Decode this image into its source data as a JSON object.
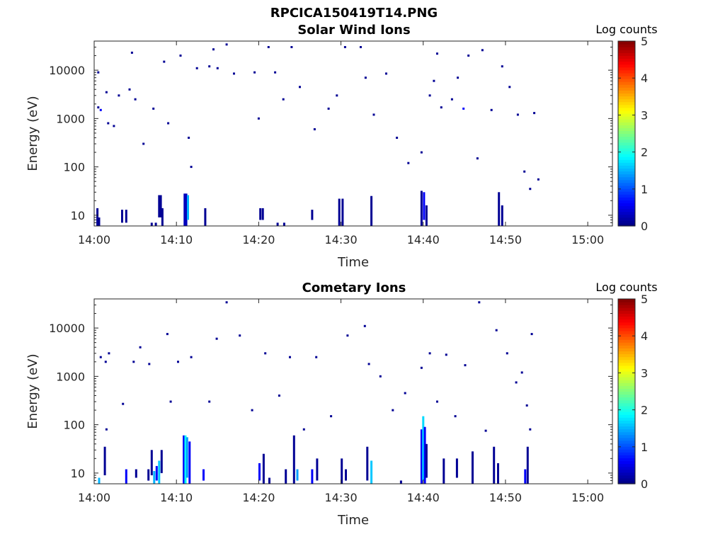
{
  "figure": {
    "title": "RPCICA150419T14.PNG"
  },
  "chart_data": [
    {
      "type": "heatmap",
      "title": "Solar Wind Ions",
      "xlabel": "Time",
      "ylabel": "Energy (eV)",
      "x_ticks": [
        "14:00",
        "14:10",
        "14:20",
        "14:30",
        "14:40",
        "14:50",
        "15:00"
      ],
      "xlim_minutes": [
        0,
        63
      ],
      "y_scale": "log",
      "y_ticks": [
        "10",
        "100",
        "1000",
        "10000"
      ],
      "ylim": [
        6,
        40000
      ],
      "colorbar": {
        "label": "Log counts",
        "range": [
          0,
          5
        ],
        "ticks": [
          "0",
          "1",
          "2",
          "3",
          "4",
          "5"
        ],
        "colormap": "jet"
      },
      "grid": false,
      "columns": [
        {
          "t": 0.4,
          "e_min": 6,
          "e_max": 14,
          "v": 0.1
        },
        {
          "t": 0.6,
          "e_min": 6,
          "e_max": 9,
          "v": 0.1
        },
        {
          "t": 3.4,
          "e_min": 7,
          "e_max": 13,
          "v": 0.1
        },
        {
          "t": 3.9,
          "e_min": 7,
          "e_max": 13,
          "v": 0.1
        },
        {
          "t": 7.0,
          "e_min": 6,
          "e_max": 7,
          "v": 0.1
        },
        {
          "t": 7.5,
          "e_min": 6,
          "e_max": 7,
          "v": 0.1
        },
        {
          "t": 7.9,
          "e_min": 9,
          "e_max": 26,
          "v": 0.1
        },
        {
          "t": 8.1,
          "e_min": 9,
          "e_max": 26,
          "v": 0.1
        },
        {
          "t": 8.3,
          "e_min": 6,
          "e_max": 14,
          "v": 0.1
        },
        {
          "t": 11.0,
          "e_min": 6,
          "e_max": 28,
          "v": 0.3
        },
        {
          "t": 11.2,
          "e_min": 6,
          "e_max": 28,
          "v": 0.3
        },
        {
          "t": 11.4,
          "e_min": 8,
          "e_max": 26,
          "v": 1.5
        },
        {
          "t": 13.5,
          "e_min": 6,
          "e_max": 14,
          "v": 0.1
        },
        {
          "t": 20.2,
          "e_min": 8,
          "e_max": 14,
          "v": 0.1
        },
        {
          "t": 20.5,
          "e_min": 8,
          "e_max": 14,
          "v": 0.1
        },
        {
          "t": 22.3,
          "e_min": 6,
          "e_max": 7,
          "v": 0.1
        },
        {
          "t": 23.1,
          "e_min": 6,
          "e_max": 7,
          "v": 0.1
        },
        {
          "t": 26.5,
          "e_min": 8,
          "e_max": 13,
          "v": 0.1
        },
        {
          "t": 29.8,
          "e_min": 6,
          "e_max": 22,
          "v": 0.1
        },
        {
          "t": 30.2,
          "e_min": 6,
          "e_max": 22,
          "v": 0.1
        },
        {
          "t": 33.7,
          "e_min": 6,
          "e_max": 25,
          "v": 0.1
        },
        {
          "t": 39.8,
          "e_min": 6,
          "e_max": 32,
          "v": 0.1
        },
        {
          "t": 40.1,
          "e_min": 8,
          "e_max": 30,
          "v": 0.6
        },
        {
          "t": 40.4,
          "e_min": 6,
          "e_max": 16,
          "v": 0.1
        },
        {
          "t": 49.2,
          "e_min": 6,
          "e_max": 30,
          "v": 0.1
        },
        {
          "t": 49.6,
          "e_min": 6,
          "e_max": 16,
          "v": 0.1
        }
      ],
      "points": [
        {
          "t": 0.5,
          "e": 1700,
          "v": 0.1
        },
        {
          "t": 0.8,
          "e": 1500,
          "v": 0.6
        },
        {
          "t": 0.5,
          "e": 9000,
          "v": 0.1
        },
        {
          "t": 1.5,
          "e": 3500,
          "v": 0.1
        },
        {
          "t": 1.7,
          "e": 800,
          "v": 0.1
        },
        {
          "t": 2.4,
          "e": 700,
          "v": 0.1
        },
        {
          "t": 3.0,
          "e": 3000,
          "v": 0.1
        },
        {
          "t": 4.3,
          "e": 4000,
          "v": 0.1
        },
        {
          "t": 4.6,
          "e": 23000,
          "v": 0.1
        },
        {
          "t": 5.0,
          "e": 2500,
          "v": 0.1
        },
        {
          "t": 6.0,
          "e": 300,
          "v": 0.1
        },
        {
          "t": 7.2,
          "e": 1600,
          "v": 0.1
        },
        {
          "t": 8.5,
          "e": 15000,
          "v": 0.1
        },
        {
          "t": 9.0,
          "e": 800,
          "v": 0.1
        },
        {
          "t": 10.5,
          "e": 20000,
          "v": 0.1
        },
        {
          "t": 11.5,
          "e": 400,
          "v": 0.1
        },
        {
          "t": 11.8,
          "e": 100,
          "v": 0.1
        },
        {
          "t": 12.5,
          "e": 11000,
          "v": 0.1
        },
        {
          "t": 14.0,
          "e": 12000,
          "v": 0.1
        },
        {
          "t": 14.5,
          "e": 27000,
          "v": 0.1
        },
        {
          "t": 15.0,
          "e": 11000,
          "v": 0.1
        },
        {
          "t": 16.1,
          "e": 34000,
          "v": 0.1
        },
        {
          "t": 17.0,
          "e": 8500,
          "v": 0.1
        },
        {
          "t": 19.5,
          "e": 9000,
          "v": 0.1
        },
        {
          "t": 20.0,
          "e": 1000,
          "v": 0.1
        },
        {
          "t": 21.2,
          "e": 30000,
          "v": 0.1
        },
        {
          "t": 22.0,
          "e": 9000,
          "v": 0.1
        },
        {
          "t": 23.0,
          "e": 2500,
          "v": 0.1
        },
        {
          "t": 24.0,
          "e": 30000,
          "v": 0.1
        },
        {
          "t": 25.0,
          "e": 4500,
          "v": 0.1
        },
        {
          "t": 26.8,
          "e": 600,
          "v": 0.1
        },
        {
          "t": 28.5,
          "e": 1600,
          "v": 0.1
        },
        {
          "t": 29.5,
          "e": 3000,
          "v": 0.1
        },
        {
          "t": 30.5,
          "e": 30000,
          "v": 0.1
        },
        {
          "t": 32.4,
          "e": 30000,
          "v": 0.1
        },
        {
          "t": 33.0,
          "e": 7000,
          "v": 0.1
        },
        {
          "t": 34.0,
          "e": 1200,
          "v": 0.1
        },
        {
          "t": 35.5,
          "e": 8500,
          "v": 0.1
        },
        {
          "t": 36.8,
          "e": 400,
          "v": 0.1
        },
        {
          "t": 38.2,
          "e": 120,
          "v": 0.1
        },
        {
          "t": 39.8,
          "e": 200,
          "v": 0.1
        },
        {
          "t": 40.8,
          "e": 3000,
          "v": 0.1
        },
        {
          "t": 41.3,
          "e": 6000,
          "v": 0.1
        },
        {
          "t": 41.7,
          "e": 22000,
          "v": 0.1
        },
        {
          "t": 42.2,
          "e": 1700,
          "v": 0.1
        },
        {
          "t": 43.5,
          "e": 2500,
          "v": 0.1
        },
        {
          "t": 44.2,
          "e": 7000,
          "v": 0.1
        },
        {
          "t": 44.9,
          "e": 1600,
          "v": 0.6
        },
        {
          "t": 45.5,
          "e": 20000,
          "v": 0.1
        },
        {
          "t": 46.6,
          "e": 150,
          "v": 0.1
        },
        {
          "t": 47.2,
          "e": 26000,
          "v": 0.1
        },
        {
          "t": 48.3,
          "e": 1500,
          "v": 0.1
        },
        {
          "t": 49.6,
          "e": 12000,
          "v": 0.1
        },
        {
          "t": 50.5,
          "e": 4500,
          "v": 0.1
        },
        {
          "t": 51.5,
          "e": 1200,
          "v": 0.1
        },
        {
          "t": 52.3,
          "e": 80,
          "v": 0.1
        },
        {
          "t": 53.0,
          "e": 35,
          "v": 0.1
        },
        {
          "t": 54.0,
          "e": 55,
          "v": 0.1
        },
        {
          "t": 53.5,
          "e": 1300,
          "v": 0.1
        }
      ]
    },
    {
      "type": "heatmap",
      "title": "Cometary Ions",
      "xlabel": "Time",
      "ylabel": "Energy (eV)",
      "x_ticks": [
        "14:00",
        "14:10",
        "14:20",
        "14:30",
        "14:40",
        "14:50",
        "15:00"
      ],
      "xlim_minutes": [
        0,
        63
      ],
      "y_scale": "log",
      "y_ticks": [
        "10",
        "100",
        "1000",
        "10000"
      ],
      "ylim": [
        6,
        40000
      ],
      "colorbar": {
        "label": "Log counts",
        "range": [
          0,
          5
        ],
        "ticks": [
          "0",
          "1",
          "2",
          "3",
          "4",
          "5"
        ],
        "colormap": "jet"
      },
      "grid": false,
      "columns": [
        {
          "t": 0.6,
          "e_min": 6,
          "e_max": 8,
          "v": 1.5
        },
        {
          "t": 1.3,
          "e_min": 9,
          "e_max": 35,
          "v": 0.1
        },
        {
          "t": 3.9,
          "e_min": 6,
          "e_max": 12,
          "v": 0.6
        },
        {
          "t": 5.1,
          "e_min": 8,
          "e_max": 12,
          "v": 0.1
        },
        {
          "t": 6.6,
          "e_min": 7,
          "e_max": 12,
          "v": 0.1
        },
        {
          "t": 7.0,
          "e_min": 9,
          "e_max": 30,
          "v": 0.1
        },
        {
          "t": 7.3,
          "e_min": 6,
          "e_max": 11,
          "v": 1.5
        },
        {
          "t": 7.6,
          "e_min": 7,
          "e_max": 14,
          "v": 0.6
        },
        {
          "t": 7.9,
          "e_min": 6,
          "e_max": 18,
          "v": 1.6
        },
        {
          "t": 8.2,
          "e_min": 10,
          "e_max": 30,
          "v": 0.1
        },
        {
          "t": 10.9,
          "e_min": 6,
          "e_max": 60,
          "v": 0.6
        },
        {
          "t": 11.1,
          "e_min": 6,
          "e_max": 60,
          "v": 1.9
        },
        {
          "t": 11.3,
          "e_min": 8,
          "e_max": 55,
          "v": 1.4
        },
        {
          "t": 11.6,
          "e_min": 6,
          "e_max": 45,
          "v": 0.6
        },
        {
          "t": 13.3,
          "e_min": 7,
          "e_max": 12,
          "v": 0.6
        },
        {
          "t": 20.1,
          "e_min": 7,
          "e_max": 16,
          "v": 0.6
        },
        {
          "t": 20.6,
          "e_min": 6,
          "e_max": 25,
          "v": 0.1
        },
        {
          "t": 21.3,
          "e_min": 6,
          "e_max": 8,
          "v": 0.1
        },
        {
          "t": 23.3,
          "e_min": 6,
          "e_max": 12,
          "v": 0.1
        },
        {
          "t": 24.3,
          "e_min": 6,
          "e_max": 60,
          "v": 0.1
        },
        {
          "t": 24.7,
          "e_min": 7,
          "e_max": 12,
          "v": 1.4
        },
        {
          "t": 26.5,
          "e_min": 6,
          "e_max": 12,
          "v": 0.6
        },
        {
          "t": 27.1,
          "e_min": 7,
          "e_max": 20,
          "v": 0.1
        },
        {
          "t": 30.1,
          "e_min": 6,
          "e_max": 20,
          "v": 0.1
        },
        {
          "t": 30.6,
          "e_min": 7,
          "e_max": 12,
          "v": 0.1
        },
        {
          "t": 33.2,
          "e_min": 7,
          "e_max": 35,
          "v": 0.1
        },
        {
          "t": 33.7,
          "e_min": 6,
          "e_max": 18,
          "v": 1.6
        },
        {
          "t": 37.3,
          "e_min": 6,
          "e_max": 7,
          "v": 0.1
        },
        {
          "t": 39.8,
          "e_min": 6,
          "e_max": 80,
          "v": 0.6
        },
        {
          "t": 40.0,
          "e_min": 7,
          "e_max": 150,
          "v": 1.7
        },
        {
          "t": 40.2,
          "e_min": 6,
          "e_max": 90,
          "v": 0.6
        },
        {
          "t": 40.4,
          "e_min": 8,
          "e_max": 40,
          "v": 0.1
        },
        {
          "t": 42.5,
          "e_min": 6,
          "e_max": 20,
          "v": 0.1
        },
        {
          "t": 44.1,
          "e_min": 8,
          "e_max": 20,
          "v": 0.1
        },
        {
          "t": 46.0,
          "e_min": 6,
          "e_max": 28,
          "v": 0.1
        },
        {
          "t": 48.6,
          "e_min": 6,
          "e_max": 35,
          "v": 0.1
        },
        {
          "t": 49.1,
          "e_min": 6,
          "e_max": 16,
          "v": 0.1
        },
        {
          "t": 52.4,
          "e_min": 6,
          "e_max": 12,
          "v": 0.6
        },
        {
          "t": 52.7,
          "e_min": 6,
          "e_max": 35,
          "v": 0.1
        }
      ],
      "points": [
        {
          "t": 0.8,
          "e": 2500,
          "v": 0.1
        },
        {
          "t": 1.4,
          "e": 2000,
          "v": 0.1
        },
        {
          "t": 1.8,
          "e": 3000,
          "v": 0.1
        },
        {
          "t": 1.5,
          "e": 80,
          "v": 0.1
        },
        {
          "t": 3.5,
          "e": 270,
          "v": 0.1
        },
        {
          "t": 4.8,
          "e": 2000,
          "v": 0.1
        },
        {
          "t": 5.6,
          "e": 4000,
          "v": 0.1
        },
        {
          "t": 6.7,
          "e": 1800,
          "v": 0.1
        },
        {
          "t": 8.9,
          "e": 7500,
          "v": 0.1
        },
        {
          "t": 9.3,
          "e": 300,
          "v": 0.1
        },
        {
          "t": 10.2,
          "e": 2000,
          "v": 0.1
        },
        {
          "t": 11.8,
          "e": 2500,
          "v": 0.1
        },
        {
          "t": 14.0,
          "e": 300,
          "v": 0.1
        },
        {
          "t": 14.9,
          "e": 6000,
          "v": 0.1
        },
        {
          "t": 16.1,
          "e": 34000,
          "v": 0.1
        },
        {
          "t": 17.7,
          "e": 7000,
          "v": 0.1
        },
        {
          "t": 19.2,
          "e": 200,
          "v": 0.1
        },
        {
          "t": 20.8,
          "e": 3000,
          "v": 0.1
        },
        {
          "t": 22.5,
          "e": 400,
          "v": 0.1
        },
        {
          "t": 23.8,
          "e": 2500,
          "v": 0.1
        },
        {
          "t": 25.5,
          "e": 80,
          "v": 0.1
        },
        {
          "t": 27.0,
          "e": 2500,
          "v": 0.1
        },
        {
          "t": 28.8,
          "e": 150,
          "v": 0.1
        },
        {
          "t": 30.8,
          "e": 7000,
          "v": 0.1
        },
        {
          "t": 32.9,
          "e": 11000,
          "v": 0.1
        },
        {
          "t": 33.4,
          "e": 1800,
          "v": 0.1
        },
        {
          "t": 34.8,
          "e": 1000,
          "v": 0.1
        },
        {
          "t": 36.3,
          "e": 200,
          "v": 0.1
        },
        {
          "t": 37.8,
          "e": 450,
          "v": 0.1
        },
        {
          "t": 39.8,
          "e": 1500,
          "v": 0.1
        },
        {
          "t": 40.8,
          "e": 3000,
          "v": 0.1
        },
        {
          "t": 41.7,
          "e": 300,
          "v": 0.1
        },
        {
          "t": 42.8,
          "e": 2800,
          "v": 0.1
        },
        {
          "t": 43.9,
          "e": 150,
          "v": 0.1
        },
        {
          "t": 45.1,
          "e": 1700,
          "v": 0.1
        },
        {
          "t": 46.8,
          "e": 34000,
          "v": 0.1
        },
        {
          "t": 47.6,
          "e": 75,
          "v": 0.1
        },
        {
          "t": 48.9,
          "e": 9000,
          "v": 0.1
        },
        {
          "t": 50.2,
          "e": 3000,
          "v": 0.1
        },
        {
          "t": 51.3,
          "e": 750,
          "v": 0.1
        },
        {
          "t": 52.0,
          "e": 1200,
          "v": 0.1
        },
        {
          "t": 52.6,
          "e": 250,
          "v": 0.1
        },
        {
          "t": 53.2,
          "e": 7500,
          "v": 0.1
        },
        {
          "t": 53.0,
          "e": 80,
          "v": 0.1
        }
      ]
    }
  ]
}
